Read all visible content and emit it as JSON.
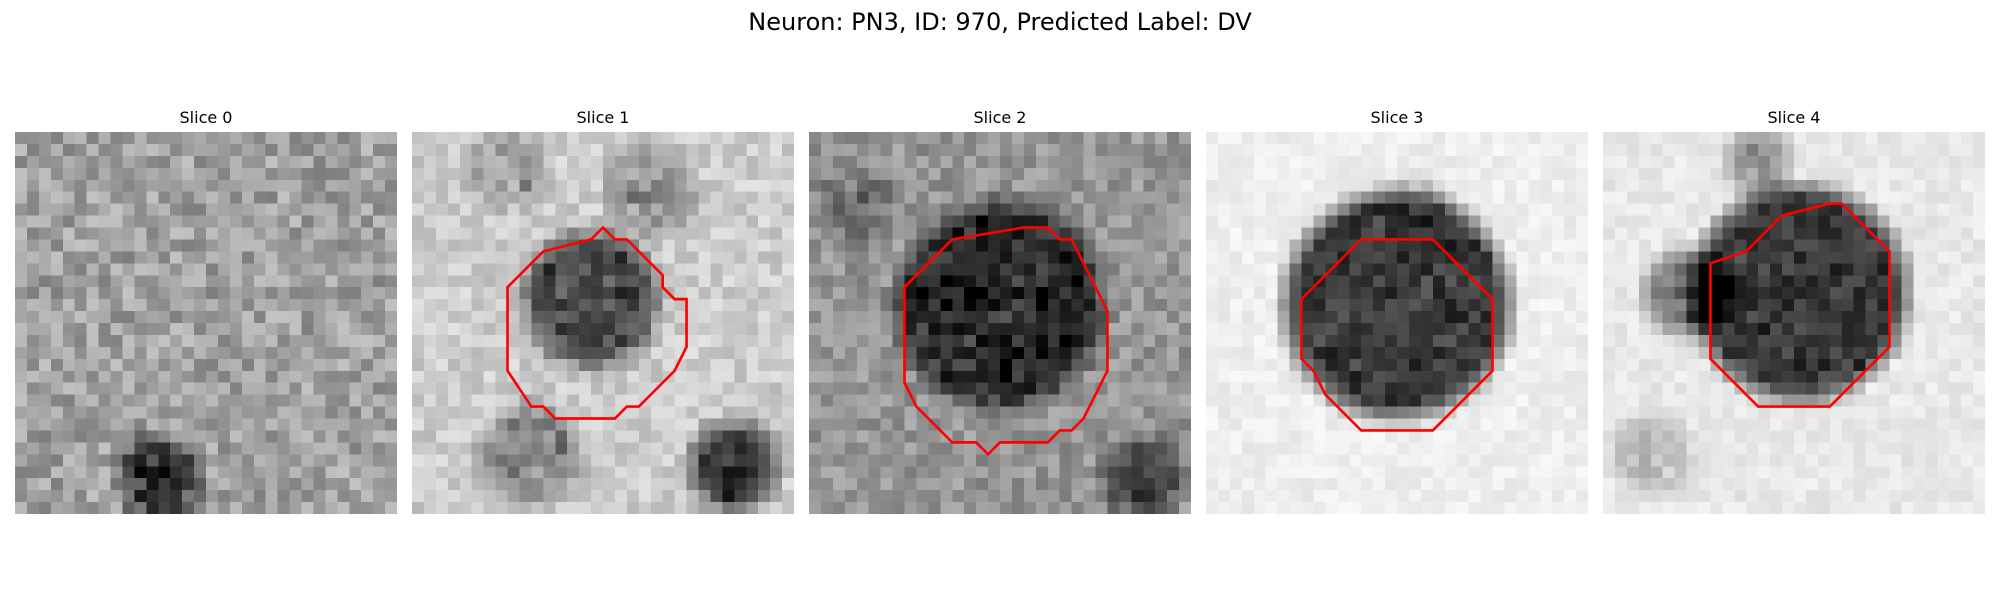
{
  "figure": {
    "title": "Neuron: PN3, ID: 970, Predicted Label: DV",
    "outline_color": "#ff0000"
  },
  "slices": [
    {
      "label": "Slice 0",
      "has_outline": false
    },
    {
      "label": "Slice 1",
      "has_outline": true
    },
    {
      "label": "Slice 2",
      "has_outline": true
    },
    {
      "label": "Slice 3",
      "has_outline": true
    },
    {
      "label": "Slice 4",
      "has_outline": true
    }
  ]
}
